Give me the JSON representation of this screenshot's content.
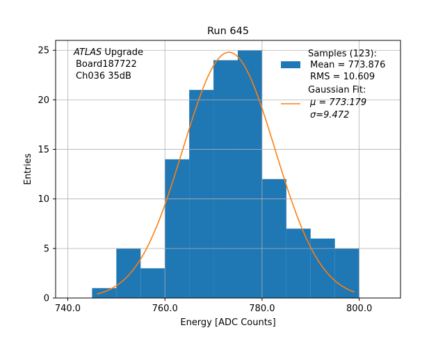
{
  "chart_data": {
    "type": "bar",
    "title": "Run 645",
    "xlabel": "Energy [ADC Counts]",
    "ylabel": "Entries",
    "xlim": [
      737.5,
      808.5
    ],
    "ylim": [
      0,
      26
    ],
    "grid": true,
    "x_ticks": [
      740.0,
      760.0,
      780.0,
      800.0
    ],
    "x_tick_labels": [
      "740.0",
      "760.0",
      "780.0",
      "800.0"
    ],
    "y_ticks": [
      0,
      5,
      10,
      15,
      20,
      25
    ],
    "y_tick_labels": [
      "0",
      "5",
      "10",
      "15",
      "20",
      "25"
    ],
    "annotation": {
      "line1_italic": "ATLAS",
      "line1_rest": " Upgrade",
      "line2": "Board187722",
      "line3": "Ch036 35dB"
    },
    "legend_position": "top-right",
    "series": [
      {
        "name": "Samples (123):",
        "kind": "histogram",
        "color": "#1f77b4",
        "legend_lines": [
          "Samples (123):",
          "Mean = 773.876",
          "RMS = 10.609"
        ],
        "bins": [
          {
            "x0": 745,
            "x1": 750,
            "count": 1
          },
          {
            "x0": 750,
            "x1": 755,
            "count": 5
          },
          {
            "x0": 755,
            "x1": 760,
            "count": 3
          },
          {
            "x0": 760,
            "x1": 765,
            "count": 14
          },
          {
            "x0": 765,
            "x1": 770,
            "count": 21
          },
          {
            "x0": 770,
            "x1": 775,
            "count": 24
          },
          {
            "x0": 775,
            "x1": 780,
            "count": 25
          },
          {
            "x0": 780,
            "x1": 785,
            "count": 12
          },
          {
            "x0": 785,
            "x1": 790,
            "count": 7
          },
          {
            "x0": 790,
            "x1": 795,
            "count": 6
          },
          {
            "x0": 795,
            "x1": 800,
            "count": 5
          }
        ]
      },
      {
        "name": "Gaussian Fit:",
        "kind": "line",
        "color": "#ff7f0e",
        "legend_lines": [
          "Gaussian Fit:",
          "μ = 773.179",
          "σ=9.472"
        ],
        "mu": 773.179,
        "sigma": 9.472,
        "amplitude": 24.8,
        "x_range": [
          746,
          799
        ]
      }
    ]
  }
}
